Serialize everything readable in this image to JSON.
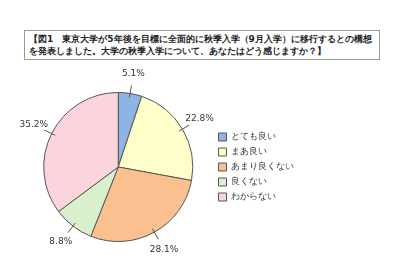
{
  "chart_data": {
    "type": "pie",
    "title": "【図1　東京大学が5年後を目標に全面的に秋季入学（9月入学）に移行するとの構想を発表しました。大学の秋季入学について、あなたはどう感じますか？】",
    "categories": [
      "とても良い",
      "まあ良い",
      "あまり良くない",
      "良くない",
      "わからない"
    ],
    "values": [
      5.1,
      22.8,
      28.1,
      8.8,
      35.2
    ],
    "value_labels": [
      "5.1%",
      "22.8%",
      "28.1%",
      "8.8%",
      "35.2%"
    ],
    "colors": [
      "#8db4e2",
      "#ffffcc",
      "#fac090",
      "#d8f0cc",
      "#fcd5dc"
    ],
    "data_labels": true,
    "legend": "right"
  }
}
